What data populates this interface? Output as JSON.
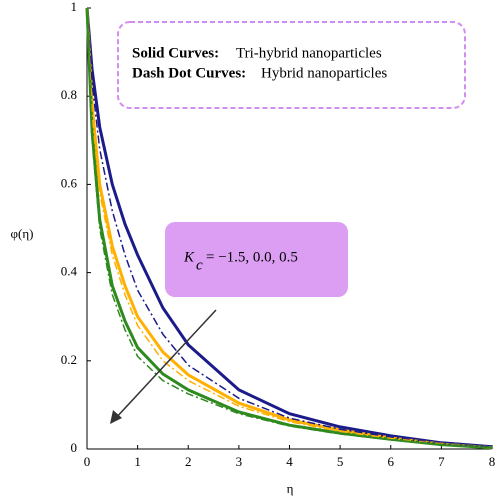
{
  "chart_data": {
    "type": "line",
    "x_label": "η",
    "y_label": "φ(η)",
    "x": [
      0,
      0.1,
      0.25,
      0.5,
      0.75,
      1,
      1.5,
      2,
      3,
      4,
      5,
      6,
      7,
      8
    ],
    "series": [
      {
        "color": "#1b1b8a",
        "style": "solid",
        "values": [
          1,
          0.86,
          0.73,
          0.6,
          0.51,
          0.44,
          0.32,
          0.236,
          0.134,
          0.08,
          0.05,
          0.03,
          0.014,
          0.005
        ]
      },
      {
        "color": "#ffb000",
        "style": "solid",
        "values": [
          1,
          0.78,
          0.6,
          0.46,
          0.37,
          0.3,
          0.22,
          0.168,
          0.104,
          0.066,
          0.043,
          0.025,
          0.011,
          0.003
        ]
      },
      {
        "color": "#2e8a1e",
        "style": "solid",
        "values": [
          1,
          0.72,
          0.52,
          0.37,
          0.29,
          0.23,
          0.17,
          0.134,
          0.084,
          0.054,
          0.036,
          0.022,
          0.01,
          0.003
        ]
      },
      {
        "color": "#1b1b8a",
        "style": "dashdot",
        "values": [
          1,
          0.83,
          0.68,
          0.54,
          0.44,
          0.36,
          0.26,
          0.19,
          0.115,
          0.07,
          0.045,
          0.027,
          0.012,
          0.004
        ]
      },
      {
        "color": "#ffb000",
        "style": "dashdot",
        "values": [
          1,
          0.76,
          0.58,
          0.44,
          0.35,
          0.28,
          0.2,
          0.155,
          0.097,
          0.062,
          0.04,
          0.024,
          0.011,
          0.003
        ]
      },
      {
        "color": "#2e8a1e",
        "style": "dashdot",
        "values": [
          1,
          0.7,
          0.5,
          0.35,
          0.27,
          0.21,
          0.155,
          0.125,
          0.08,
          0.052,
          0.034,
          0.021,
          0.01,
          0.003
        ]
      }
    ],
    "xlim": [
      0,
      8
    ],
    "xticks": [
      0,
      1,
      2,
      3,
      4,
      5,
      6,
      7,
      8
    ],
    "ylim": [
      0,
      1
    ],
    "yticks": [
      0,
      0.2,
      0.4,
      0.6,
      0.8,
      1
    ],
    "annotations": {
      "legend_box": {
        "solid_label": "Solid Curves:",
        "solid_text": "Tri-hybrid nanoparticles",
        "dash_label": "Dash Dot Curves:",
        "dash_text": "Hybrid nanoparticles"
      },
      "parameter": {
        "symbol": "K",
        "subscript": "c",
        "text": "= −1.5, 0.0, 0.5"
      }
    }
  }
}
